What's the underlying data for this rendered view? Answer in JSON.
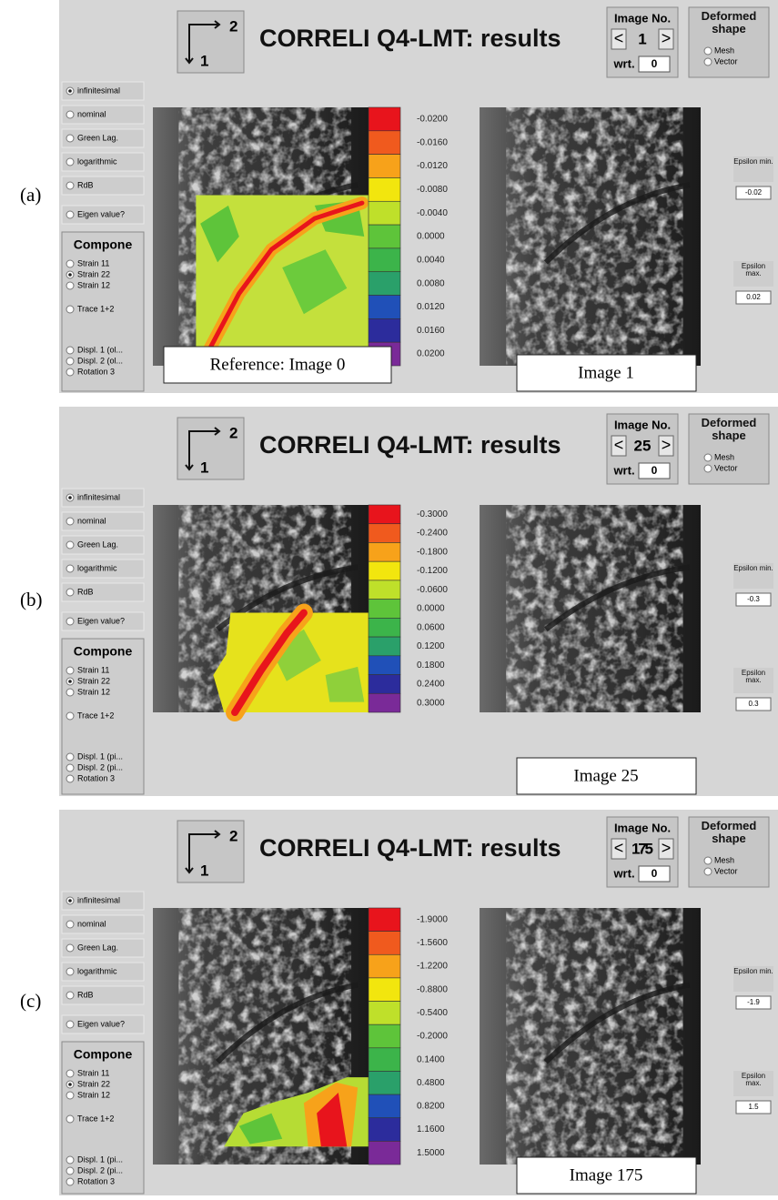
{
  "panels": [
    {
      "label": "(a)",
      "axis_icon": {
        "h": "2",
        "v": "1"
      },
      "title": "CORRELI Q4-LMT: results",
      "image_no": {
        "label": "Image No.",
        "prev": "<",
        "value": "1",
        "next": ">",
        "wrt_label": "wrt.",
        "wrt_value": "0"
      },
      "deformed": {
        "label": "Deformed shape",
        "options": [
          "Mesh",
          "Vector"
        ]
      },
      "measures": [
        "infinitesimal",
        "nominal",
        "Green Lag.",
        "logarithmic",
        "RdB",
        "Eigen value?"
      ],
      "selected_measure": 0,
      "component": {
        "label": "Compone",
        "options": [
          "Strain 11",
          "Strain 22",
          "Strain 12",
          "Trace 1+2",
          "Displ. 1 (ol...",
          "Displ. 2 (ol...",
          "Rotation 3"
        ],
        "selected": 1
      },
      "colorbar": [
        "-0.0200",
        "-0.0160",
        "-0.0120",
        "-0.0080",
        "-0.0040",
        "0.0000",
        "0.0040",
        "0.0080",
        "0.0120",
        "0.0160",
        "0.0200"
      ],
      "epsilon_min": {
        "label": "Epsilon min.",
        "value": "-0.02"
      },
      "epsilon_max": {
        "label": "Epsilon max.",
        "value": "0.02"
      },
      "reference_caption": "Reference: Image 0",
      "image_caption": "Image 1"
    },
    {
      "label": "(b)",
      "axis_icon": {
        "h": "2",
        "v": "1"
      },
      "title": "CORRELI Q4-LMT: results",
      "image_no": {
        "label": "Image No.",
        "prev": "<",
        "value": "25",
        "next": ">",
        "wrt_label": "wrt.",
        "wrt_value": "0"
      },
      "deformed": {
        "label": "Deformed shape",
        "options": [
          "Mesh",
          "Vector"
        ]
      },
      "measures": [
        "infinitesimal",
        "nominal",
        "Green Lag.",
        "logarithmic",
        "RdB",
        "Eigen value?"
      ],
      "selected_measure": 0,
      "component": {
        "label": "Compone",
        "options": [
          "Strain 11",
          "Strain 22",
          "Strain 12",
          "Trace 1+2",
          "Displ. 1 (pi...",
          "Displ. 2 (pi...",
          "Rotation 3"
        ],
        "selected": 1
      },
      "colorbar": [
        "-0.3000",
        "-0.2400",
        "-0.1800",
        "-0.1200",
        "-0.0600",
        "0.0000",
        "0.0600",
        "0.1200",
        "0.1800",
        "0.2400",
        "0.3000"
      ],
      "epsilon_min": {
        "label": "Epsilon min.",
        "value": "-0.3"
      },
      "epsilon_max": {
        "label": "Epsilon max.",
        "value": "0.3"
      },
      "image_caption": "Image 25"
    },
    {
      "label": "(c)",
      "axis_icon": {
        "h": "2",
        "v": "1"
      },
      "title": "CORRELI Q4-LMT: results",
      "image_no": {
        "label": "Image No.",
        "prev": "<",
        "value": "175",
        "next": ">",
        "wrt_label": "wrt.",
        "wrt_value": "0"
      },
      "deformed": {
        "label": "Deformed shape",
        "options": [
          "Mesh",
          "Vector"
        ]
      },
      "measures": [
        "infinitesimal",
        "nominal",
        "Green Lag.",
        "logarithmic",
        "RdB",
        "Eigen value?"
      ],
      "selected_measure": 0,
      "component": {
        "label": "Compone",
        "options": [
          "Strain 11",
          "Strain 22",
          "Strain 12",
          "Trace 1+2",
          "Displ. 1 (pi...",
          "Displ. 2 (pi...",
          "Rotation 3"
        ],
        "selected": 1
      },
      "colorbar": [
        "-1.9000",
        "-1.5600",
        "-1.2200",
        "-0.8800",
        "-0.5400",
        "-0.2000",
        "0.1400",
        "0.4800",
        "0.8200",
        "1.1600",
        "1.5000"
      ],
      "epsilon_min": {
        "label": "Epsilon min.",
        "value": "-1.9"
      },
      "epsilon_max": {
        "label": "Epsilon max.",
        "value": "1.5"
      },
      "image_caption": "Image 175"
    }
  ]
}
